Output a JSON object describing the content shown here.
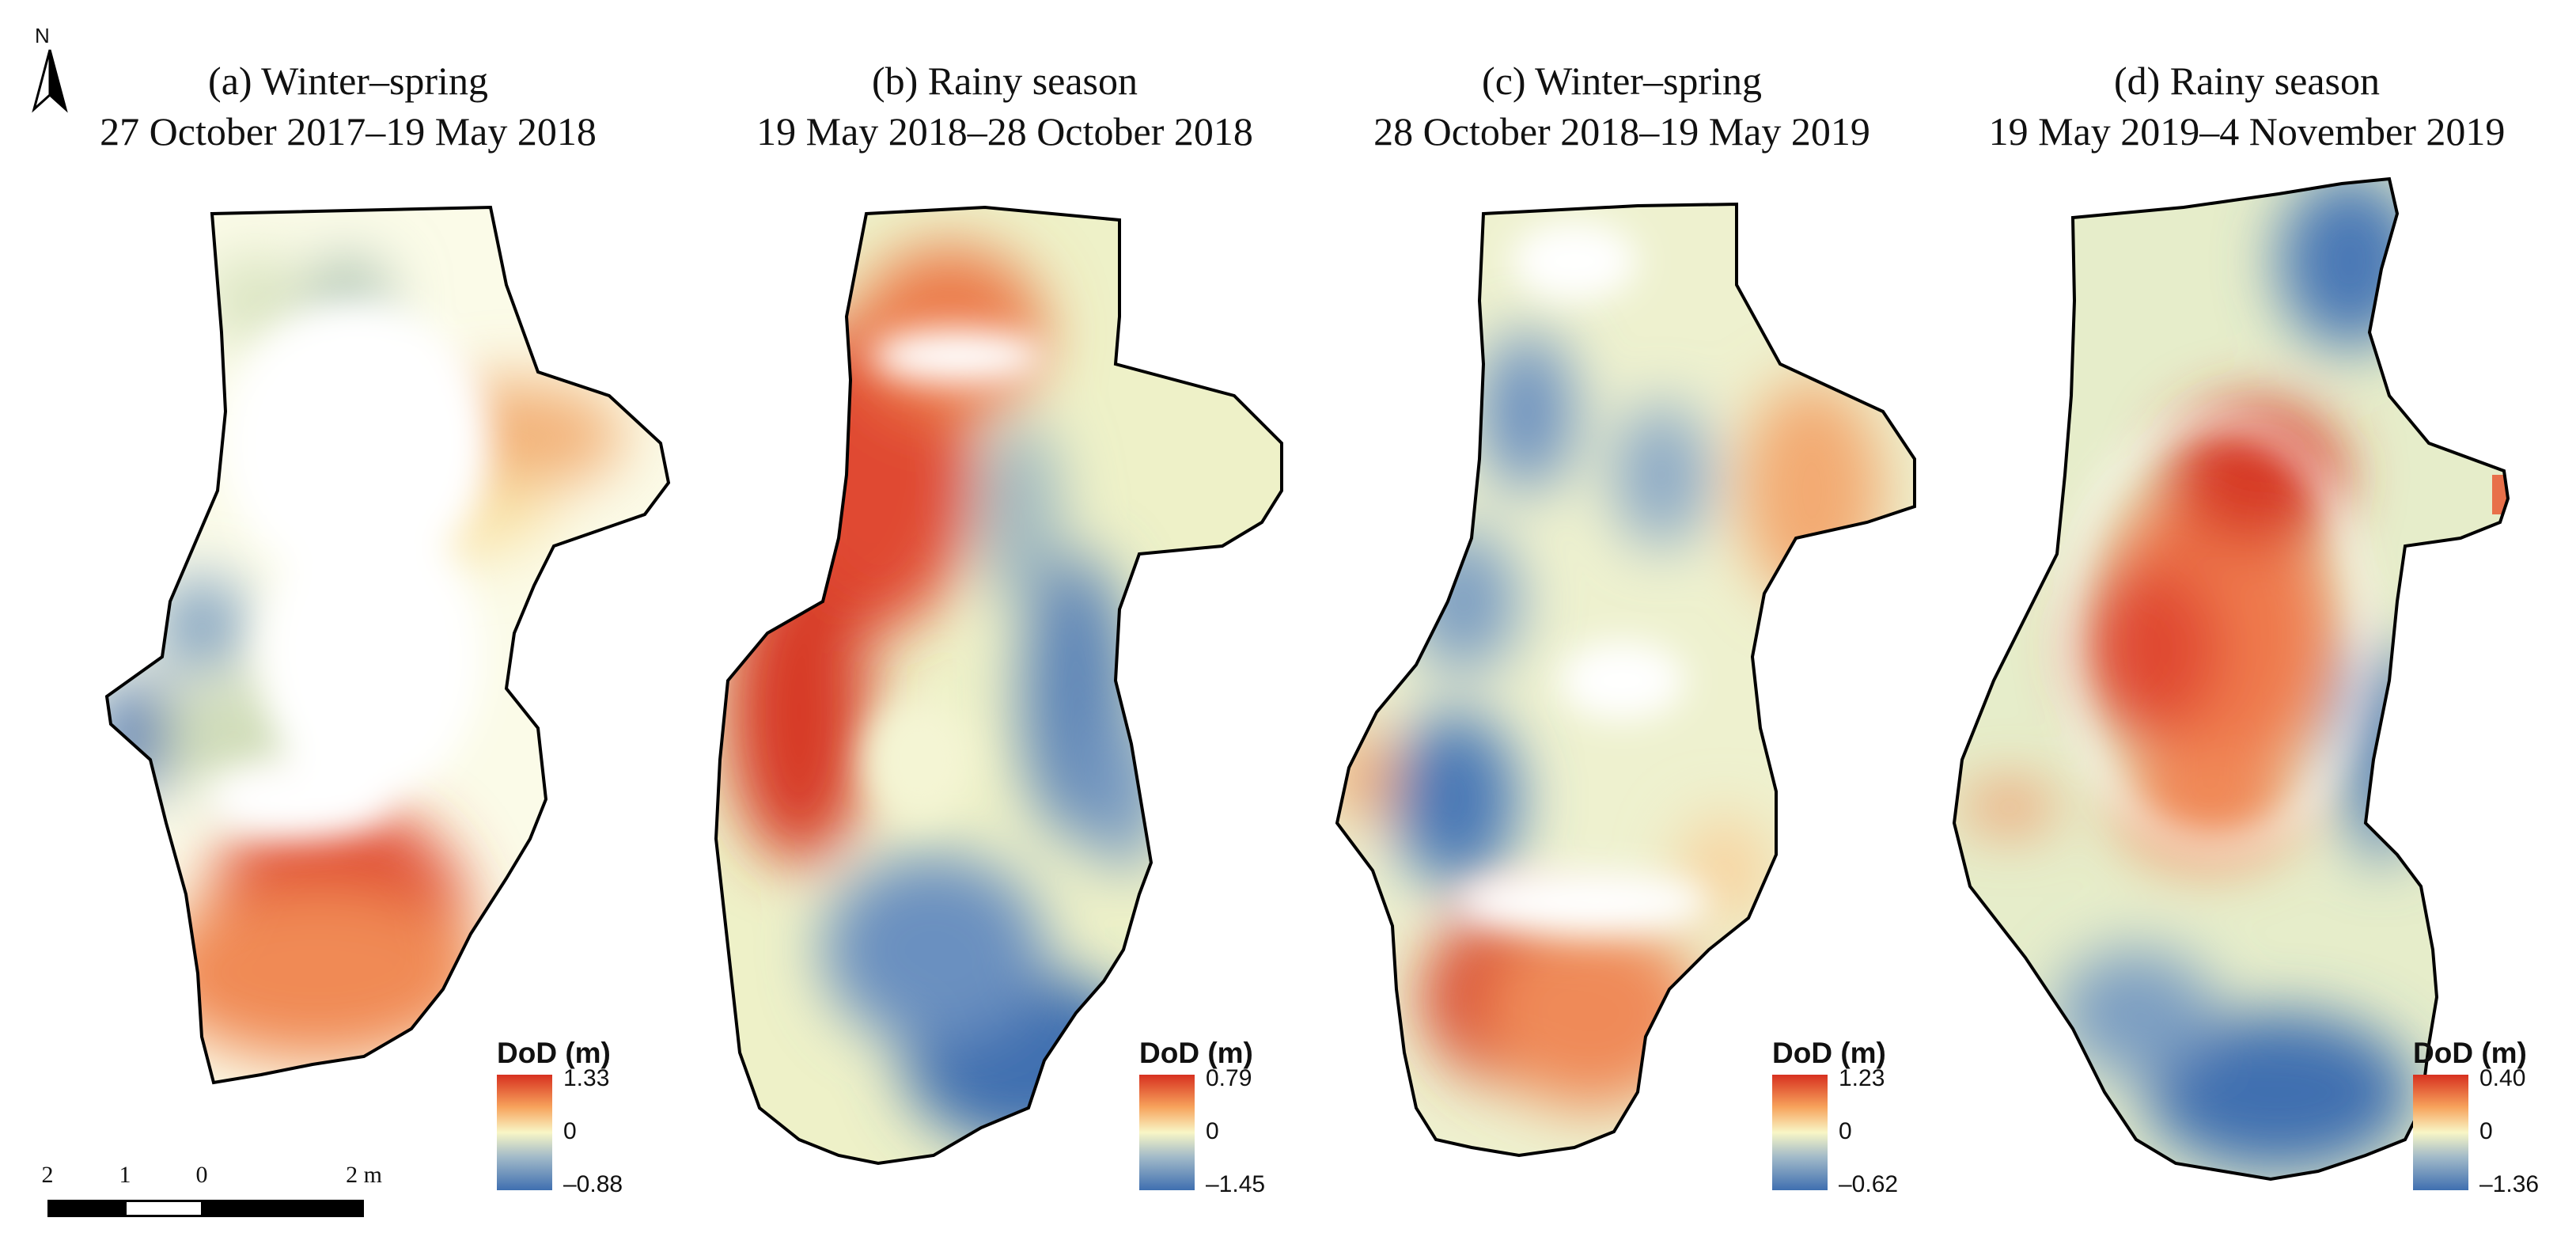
{
  "north_arrow": {
    "label": "N"
  },
  "panels": [
    {
      "id": "a",
      "title_line1": "(a) Winter–spring",
      "title_line2": "27 October 2017–19 May 2018",
      "legend": {
        "title": "DoD (m)",
        "max": "1.33",
        "mid": "0",
        "min": "–0.88"
      }
    },
    {
      "id": "b",
      "title_line1": "(b) Rainy season",
      "title_line2": "19 May 2018–28 October 2018",
      "legend": {
        "title": "DoD (m)",
        "max": "0.79",
        "mid": "0",
        "min": "–1.45"
      }
    },
    {
      "id": "c",
      "title_line1": "(c) Winter–spring",
      "title_line2": "28 October 2018–19 May 2019",
      "legend": {
        "title": "DoD (m)",
        "max": "1.23",
        "mid": "0",
        "min": "–0.62"
      }
    },
    {
      "id": "d",
      "title_line1": "(d) Rainy season",
      "title_line2": "19 May 2019–4 November 2019",
      "legend": {
        "title": "DoD (m)",
        "max": "0.40",
        "mid": "0",
        "min": "–1.36"
      }
    }
  ],
  "scale_bar": {
    "ticks": [
      "2",
      "1",
      "0",
      "2 m"
    ]
  },
  "colors": {
    "deposition": "#d7301f",
    "neutral": "#f4f4c0",
    "erosion": "#3f6fb0",
    "outline": "#000000"
  }
}
